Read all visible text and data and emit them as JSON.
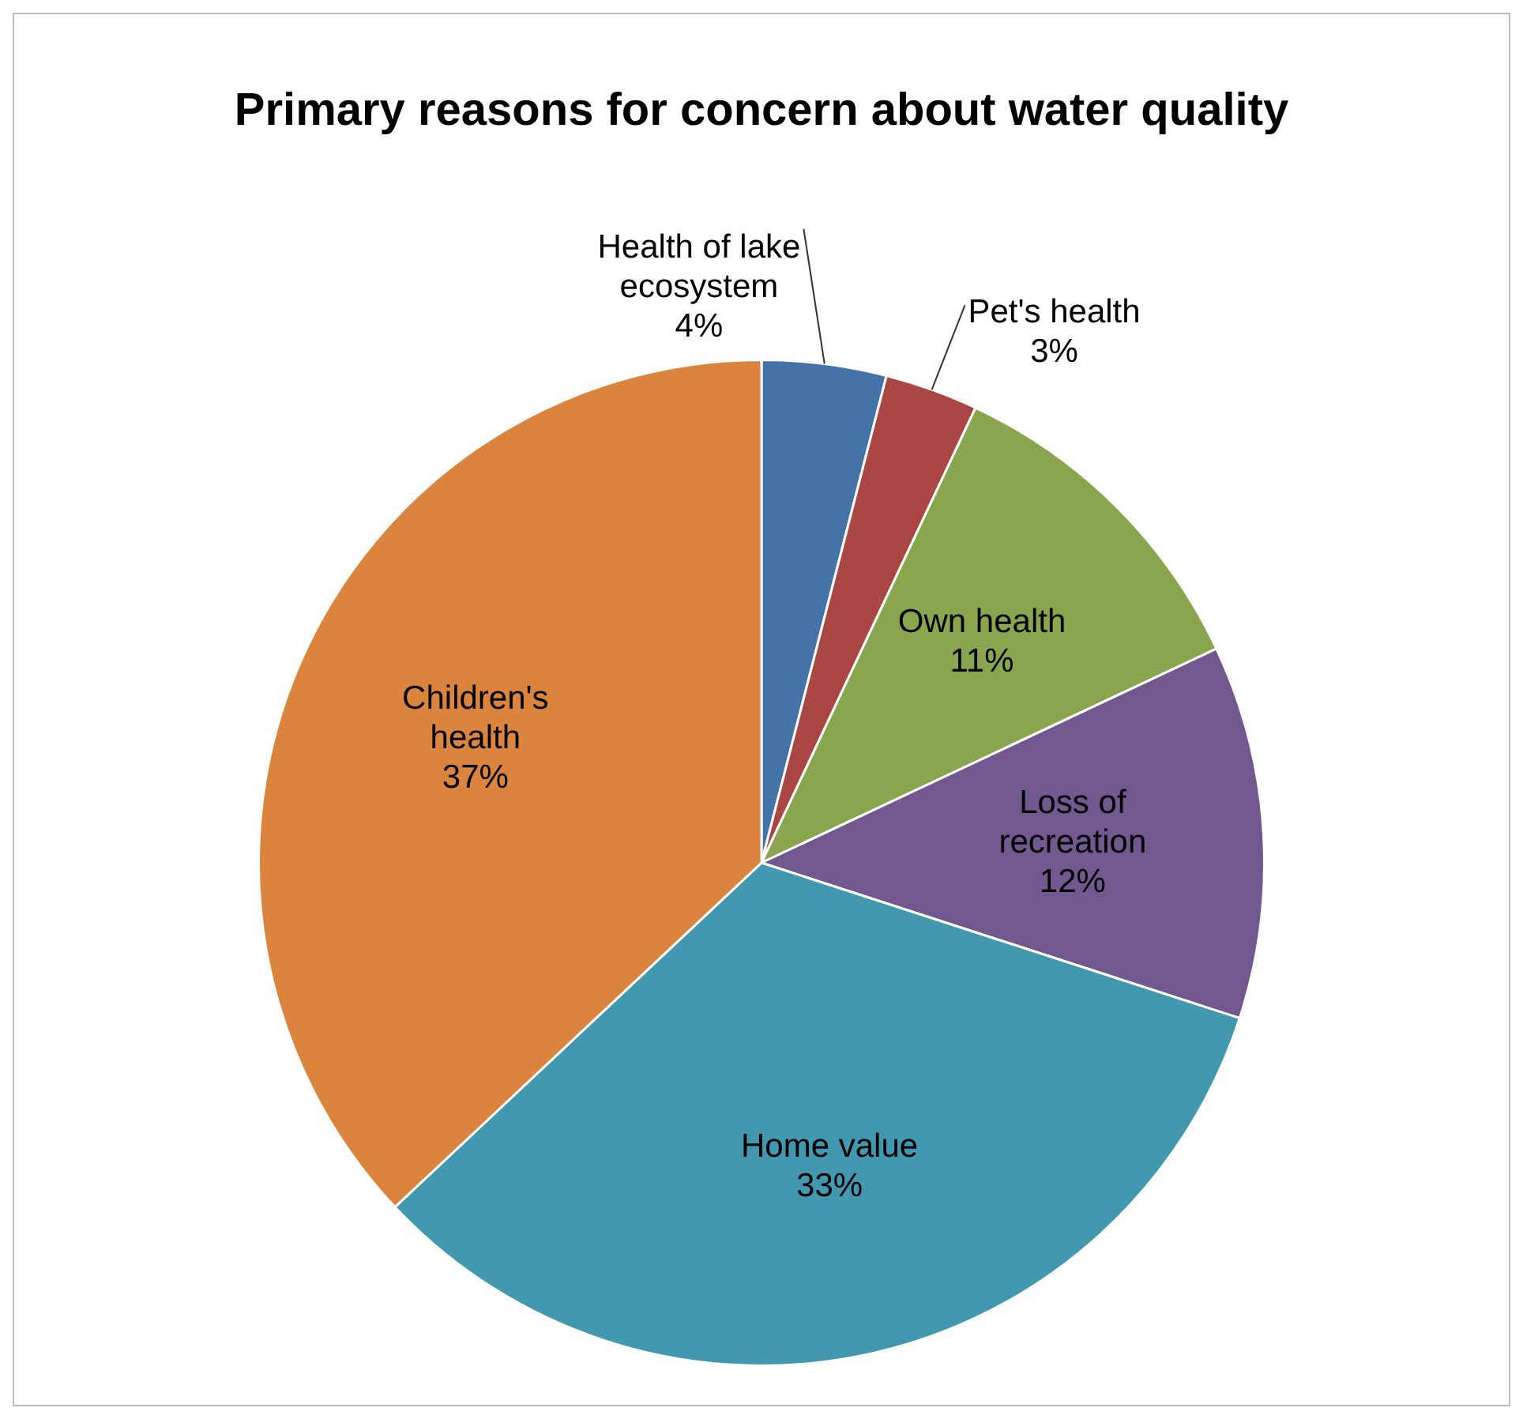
{
  "chart_data": {
    "type": "pie",
    "title": "Primary reasons for concern about water quality",
    "categories": [
      "Health of lake ecosystem",
      "Pet's health",
      "Own health",
      "Loss of recreation",
      "Home value",
      "Children's health"
    ],
    "values": [
      4,
      3,
      11,
      12,
      33,
      37
    ],
    "value_labels": [
      "4%",
      "3%",
      "11%",
      "12%",
      "33%",
      "37%"
    ],
    "colors": [
      "#4572a7",
      "#aa4643",
      "#89a54e",
      "#71588f",
      "#4198af",
      "#db843d"
    ],
    "legend": false
  }
}
